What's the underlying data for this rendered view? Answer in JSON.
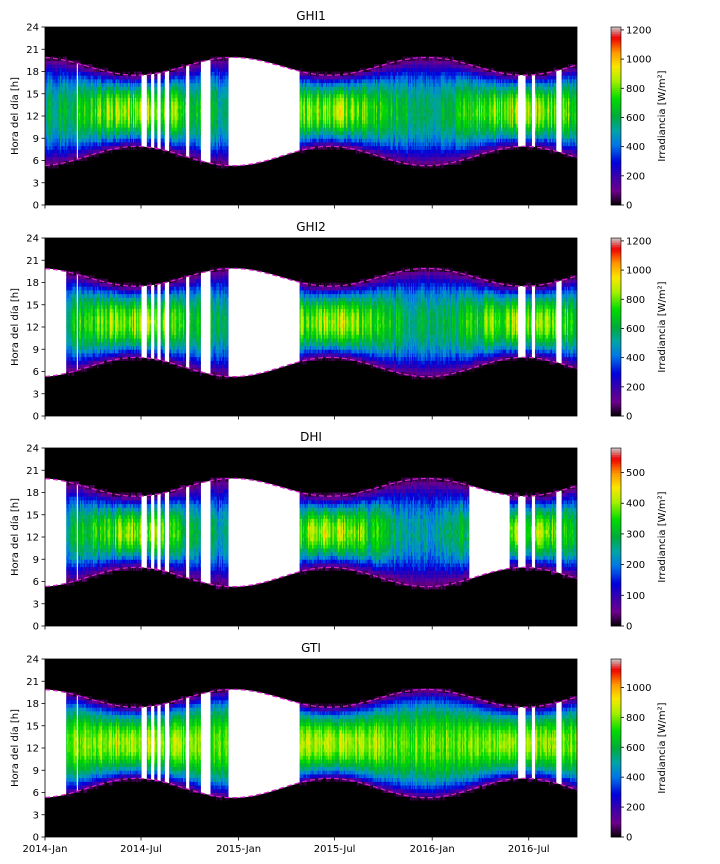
{
  "chart_data": [
    {
      "type": "heatmap",
      "title": "GHI1",
      "ylabel": "Hora del día [h]",
      "colorbar_label": "Irradiancia [W/m²]",
      "colorbar_ticks": [
        0,
        200,
        400,
        600,
        800,
        1000,
        1200
      ],
      "colorbar_max": 1220,
      "ylim": [
        0,
        24
      ],
      "yticks": [
        0,
        3,
        6,
        9,
        12,
        15,
        18,
        21,
        24
      ],
      "missing_start_day": 0
    },
    {
      "type": "heatmap",
      "title": "GHI2",
      "ylabel": "Hora del día [h]",
      "colorbar_label": "Irradiancia [W/m²]",
      "colorbar_ticks": [
        0,
        200,
        400,
        600,
        800,
        1000,
        1200
      ],
      "colorbar_max": 1220,
      "ylim": [
        0,
        24
      ],
      "yticks": [
        0,
        3,
        6,
        9,
        12,
        15,
        18,
        21,
        24
      ],
      "missing_start_day": 40
    },
    {
      "type": "heatmap",
      "title": "DHI",
      "ylabel": "Hora del día [h]",
      "colorbar_label": "Irradiancia [W/m²]",
      "colorbar_ticks": [
        0,
        100,
        200,
        300,
        400,
        500
      ],
      "colorbar_max": 580,
      "ylim": [
        0,
        24
      ],
      "yticks": [
        0,
        3,
        6,
        9,
        12,
        15,
        18,
        21,
        24
      ],
      "missing_start_day": 40
    },
    {
      "type": "heatmap",
      "title": "GTI",
      "ylabel": "Hora del día [h]",
      "colorbar_label": "Irradiancia [W/m²]",
      "colorbar_ticks": [
        0,
        200,
        400,
        600,
        800,
        1000
      ],
      "colorbar_max": 1190,
      "ylim": [
        0,
        24
      ],
      "yticks": [
        0,
        3,
        6,
        9,
        12,
        15,
        18,
        21,
        24
      ],
      "missing_start_day": 40
    }
  ],
  "x_axis": {
    "start": "2014-01-01",
    "end": "2016-09-30",
    "tick_labels": [
      "2014-Jan",
      "2014-Jul",
      "2015-Jan",
      "2015-Jul",
      "2016-Jan",
      "2016-Jul"
    ],
    "tick_dates": [
      "2014-01-01",
      "2014-07-01",
      "2015-01-01",
      "2015-07-01",
      "2016-01-01",
      "2016-07-01"
    ]
  },
  "gaps_all_panels": [
    [
      "2014-03-01",
      "2014-03-04"
    ],
    [
      "2014-07-02",
      "2014-07-12"
    ],
    [
      "2014-07-20",
      "2014-07-26"
    ],
    [
      "2014-08-01",
      "2014-08-06"
    ],
    [
      "2014-08-15",
      "2014-08-22"
    ],
    [
      "2014-09-24",
      "2014-09-30"
    ],
    [
      "2014-10-21",
      "2014-11-08"
    ],
    [
      "2014-12-12",
      "2015-04-25"
    ],
    [
      "2016-06-10",
      "2016-06-25"
    ],
    [
      "2016-07-06",
      "2016-07-12"
    ],
    [
      "2016-08-21",
      "2016-08-31"
    ]
  ],
  "gap_dhi_extra": [
    "2016-03-10",
    "2016-05-25"
  ],
  "daylight_envelope": {
    "sunrise_range_h": [
      5.3,
      7.9
    ],
    "sunset_range_h": [
      17.5,
      19.9
    ],
    "line_color": "#d020c8"
  }
}
